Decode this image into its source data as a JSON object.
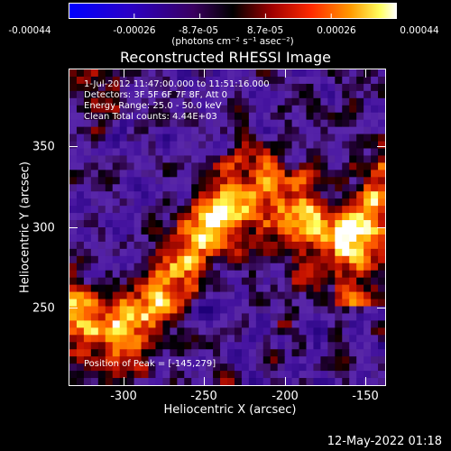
{
  "colorbar": {
    "tick_labels": [
      "-0.00044",
      "-0.00026",
      "-8.7e-05",
      "8.7e-05",
      "0.00026",
      "0.00044"
    ],
    "units": "(photons cm⁻² s⁻¹ asec⁻²)",
    "range": [
      -0.00044,
      0.00044
    ],
    "colors": [
      "#0000ff",
      "#3a00a0",
      "#000000",
      "#a00000",
      "#ff3a00",
      "#ff9a00",
      "#ffff80",
      "#ffffff"
    ]
  },
  "chart_data": {
    "type": "heatmap",
    "title": "Reconstructed RHESSI Image",
    "xlabel": "Heliocentric X (arcsec)",
    "ylabel": "Heliocentric Y (arcsec)",
    "xlim": [
      -333,
      -137
    ],
    "ylim": [
      202,
      398
    ],
    "xticks": [
      -300,
      -250,
      -200,
      -150
    ],
    "yticks": [
      250,
      300,
      350
    ],
    "peak_position": [
      -145,
      279
    ],
    "grid": false
  },
  "info": {
    "line1": "1-Jul-2012 11:47:00.000 to 11:51:16.000",
    "line2": "Detectors: 3F 5F 6F 7F 8F, Att 0",
    "line3": "Energy Range: 25.0 - 50.0 keV",
    "line4": "Clean    Total counts: 4.44E+03",
    "peak": "Position of Peak = [-145,279]"
  },
  "timestamp": "12-May-2022 01:18"
}
